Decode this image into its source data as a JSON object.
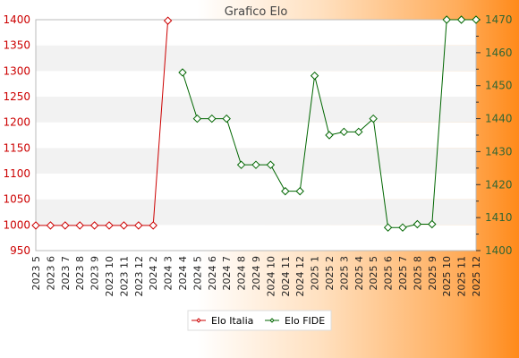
{
  "chart_data": {
    "type": "line",
    "title": "Grafico Elo",
    "xlabel": "",
    "ylabel": "",
    "categories": [
      "2023 5",
      "2023 6",
      "2023 7",
      "2023 8",
      "2023 9",
      "2023 10",
      "2023 11",
      "2023 12",
      "2024 2",
      "2024 3",
      "2024 4",
      "2024 5",
      "2024 6",
      "2024 7",
      "2024 8",
      "2024 9",
      "2024 10",
      "2024 11",
      "2024 12",
      "2025 1",
      "2025 2",
      "2025 3",
      "2025 4",
      "2025 5",
      "2025 6",
      "2025 7",
      "2025 8",
      "2025 9",
      "2025 10",
      "2025 11",
      "2025 12"
    ],
    "y_left": {
      "lim": [
        950,
        1400
      ],
      "ticks": [
        950,
        1000,
        1050,
        1100,
        1150,
        1200,
        1250,
        1300,
        1350,
        1400
      ]
    },
    "y_right": {
      "lim": [
        1400,
        1470
      ],
      "ticks": [
        1400,
        1410,
        1420,
        1430,
        1440,
        1450,
        1460,
        1470
      ]
    },
    "grid": "horizontal bands",
    "legend_position": "bottom",
    "series": [
      {
        "name": "Elo Italia",
        "axis": "left",
        "color": "#cc0000",
        "values": [
          999,
          999,
          999,
          999,
          999,
          999,
          999,
          999,
          999,
          1398,
          null,
          null,
          null,
          null,
          null,
          null,
          null,
          null,
          null,
          null,
          null,
          null,
          null,
          null,
          null,
          null,
          null,
          null,
          null,
          null,
          null
        ]
      },
      {
        "name": "Elo FIDE",
        "axis": "right",
        "color": "#006600",
        "values": [
          null,
          null,
          null,
          null,
          null,
          null,
          null,
          null,
          null,
          null,
          1454,
          1440,
          1440,
          1440,
          1426,
          1426,
          1426,
          1418,
          1418,
          1453,
          1435,
          1436,
          1436,
          1440,
          1407,
          1407,
          1408,
          1408,
          1470,
          1470,
          1470
        ]
      }
    ]
  }
}
